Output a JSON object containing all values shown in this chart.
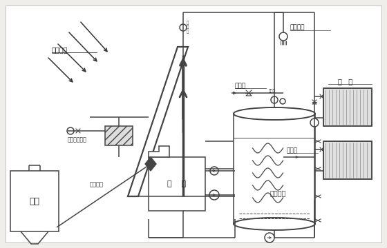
{
  "bg_color": "#f0eeea",
  "lc": "#444444",
  "lw": 1.1,
  "labels": {
    "solar": "太阳能光",
    "hot_shower": "热水洗浴",
    "tap_water1": "自来水",
    "tap_water2": "自来水",
    "heating": "采   暖",
    "boiler": "锅    炉",
    "silo": "料仓",
    "feed": "进料装置",
    "exchanger": "烟气干发换器",
    "storage": "储热水箱"
  }
}
